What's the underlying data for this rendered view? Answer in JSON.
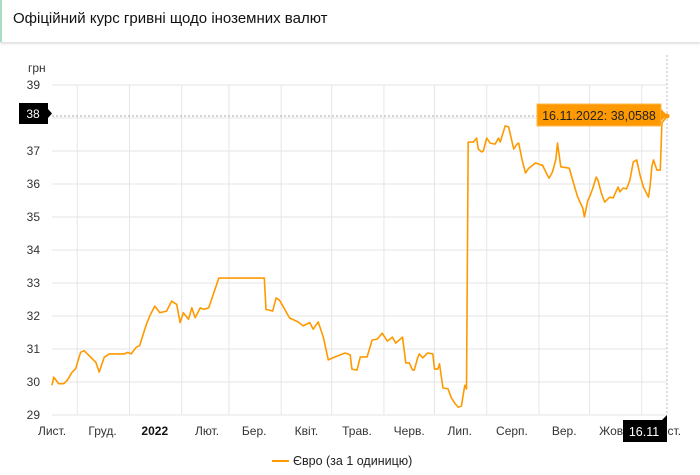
{
  "header": {
    "title": "Офіційний курс гривні щодо іноземних валют"
  },
  "chart_data": {
    "type": "line",
    "ylabel": "грн",
    "ylim": [
      29,
      39
    ],
    "yticks": [
      29,
      30,
      31,
      32,
      33,
      34,
      35,
      36,
      37,
      38,
      39
    ],
    "xlim": [
      "2021-11-16",
      "2022-11-16"
    ],
    "xticks": [
      {
        "date": "2021-11-16",
        "label": "Лист.",
        "bold": false
      },
      {
        "date": "2021-12-16",
        "label": "Груд.",
        "bold": false
      },
      {
        "date": "2022-01-16",
        "label": "2022",
        "bold": true
      },
      {
        "date": "2022-02-16",
        "label": "Лют.",
        "bold": false
      },
      {
        "date": "2022-03-16",
        "label": "Бер.",
        "bold": false
      },
      {
        "date": "2022-04-16",
        "label": "Квіт.",
        "bold": false
      },
      {
        "date": "2022-05-16",
        "label": "Трав.",
        "bold": false
      },
      {
        "date": "2022-06-16",
        "label": "Черв.",
        "bold": false
      },
      {
        "date": "2022-07-16",
        "label": "Лип.",
        "bold": false
      },
      {
        "date": "2022-08-16",
        "label": "Серп.",
        "bold": false
      },
      {
        "date": "2022-09-16",
        "label": "Вер.",
        "bold": false
      },
      {
        "date": "2022-10-16",
        "label": "Жовт.",
        "bold": false
      },
      {
        "date": "2022-11-16",
        "label": "Лист.",
        "bold": false
      }
    ],
    "grid": true,
    "legend_position": "bottom",
    "series": [
      {
        "name": "Євро (за 1 одиницю)",
        "color": "#ff9900",
        "points": [
          [
            "2021-11-16",
            29.9
          ],
          [
            "2021-11-17",
            30.15
          ],
          [
            "2021-11-20",
            29.95
          ],
          [
            "2021-11-23",
            29.95
          ],
          [
            "2021-11-25",
            30.05
          ],
          [
            "2021-11-28",
            30.3
          ],
          [
            "2021-11-30",
            30.4
          ],
          [
            "2021-12-03",
            30.9
          ],
          [
            "2021-12-05",
            30.95
          ],
          [
            "2021-12-07",
            30.85
          ],
          [
            "2021-12-10",
            30.7
          ],
          [
            "2021-12-12",
            30.6
          ],
          [
            "2021-12-14",
            30.3
          ],
          [
            "2021-12-17",
            30.75
          ],
          [
            "2021-12-20",
            30.85
          ],
          [
            "2021-12-24",
            30.85
          ],
          [
            "2021-12-29",
            30.85
          ],
          [
            "2021-12-31",
            30.9
          ],
          [
            "2022-01-02",
            30.85
          ],
          [
            "2022-01-05",
            31.05
          ],
          [
            "2022-01-07",
            31.1
          ],
          [
            "2022-01-11",
            31.75
          ],
          [
            "2022-01-13",
            32.0
          ],
          [
            "2022-01-16",
            32.3
          ],
          [
            "2022-01-19",
            32.1
          ],
          [
            "2022-01-23",
            32.15
          ],
          [
            "2022-01-26",
            32.45
          ],
          [
            "2022-01-29",
            32.35
          ],
          [
            "2022-01-31",
            31.8
          ],
          [
            "2022-02-02",
            32.1
          ],
          [
            "2022-02-05",
            31.9
          ],
          [
            "2022-02-07",
            32.25
          ],
          [
            "2022-02-09",
            31.95
          ],
          [
            "2022-02-12",
            32.25
          ],
          [
            "2022-02-14",
            32.2
          ],
          [
            "2022-02-17",
            32.25
          ],
          [
            "2022-02-19",
            32.55
          ],
          [
            "2022-02-23",
            33.15
          ],
          [
            "2022-03-22",
            33.15
          ],
          [
            "2022-03-23",
            32.2
          ],
          [
            "2022-03-27",
            32.15
          ],
          [
            "2022-03-29",
            32.55
          ],
          [
            "2022-03-31",
            32.48
          ],
          [
            "2022-04-06",
            31.94
          ],
          [
            "2022-04-11",
            31.82
          ],
          [
            "2022-04-14",
            31.7
          ],
          [
            "2022-04-18",
            31.8
          ],
          [
            "2022-04-20",
            31.6
          ],
          [
            "2022-04-23",
            31.82
          ],
          [
            "2022-04-26",
            31.36
          ],
          [
            "2022-04-29",
            30.67
          ],
          [
            "2022-05-03",
            30.76
          ],
          [
            "2022-05-09",
            30.88
          ],
          [
            "2022-05-12",
            30.82
          ],
          [
            "2022-05-13",
            30.39
          ],
          [
            "2022-05-16",
            30.36
          ],
          [
            "2022-05-18",
            30.76
          ],
          [
            "2022-05-22",
            30.76
          ],
          [
            "2022-05-25",
            31.27
          ],
          [
            "2022-05-28",
            31.3
          ],
          [
            "2022-05-31",
            31.48
          ],
          [
            "2022-06-03",
            31.24
          ],
          [
            "2022-06-06",
            31.36
          ],
          [
            "2022-06-08",
            31.18
          ],
          [
            "2022-06-12",
            31.36
          ],
          [
            "2022-06-14",
            30.58
          ],
          [
            "2022-06-16",
            30.58
          ],
          [
            "2022-06-18",
            30.36
          ],
          [
            "2022-06-19",
            30.36
          ],
          [
            "2022-06-21",
            30.73
          ],
          [
            "2022-06-22",
            30.85
          ],
          [
            "2022-06-24",
            30.73
          ],
          [
            "2022-06-27",
            30.88
          ],
          [
            "2022-06-30",
            30.85
          ],
          [
            "2022-07-01",
            30.39
          ],
          [
            "2022-07-03",
            30.39
          ],
          [
            "2022-07-04",
            30.55
          ],
          [
            "2022-07-06",
            29.82
          ],
          [
            "2022-07-09",
            29.79
          ],
          [
            "2022-07-11",
            29.52
          ],
          [
            "2022-07-13",
            29.36
          ],
          [
            "2022-07-15",
            29.24
          ],
          [
            "2022-07-17",
            29.27
          ],
          [
            "2022-07-19",
            29.9
          ],
          [
            "2022-07-20",
            29.79
          ],
          [
            "2022-07-21",
            37.27
          ],
          [
            "2022-07-24",
            37.27
          ],
          [
            "2022-07-26",
            37.39
          ],
          [
            "2022-07-27",
            37.06
          ],
          [
            "2022-07-29",
            36.97
          ],
          [
            "2022-07-30",
            37.0
          ],
          [
            "2022-08-01",
            37.39
          ],
          [
            "2022-08-03",
            37.24
          ],
          [
            "2022-08-06",
            37.21
          ],
          [
            "2022-08-08",
            37.39
          ],
          [
            "2022-08-09",
            37.27
          ],
          [
            "2022-08-12",
            37.76
          ],
          [
            "2022-08-14",
            37.73
          ],
          [
            "2022-08-17",
            37.06
          ],
          [
            "2022-08-19",
            37.21
          ],
          [
            "2022-08-20",
            37.24
          ],
          [
            "2022-08-22",
            36.73
          ],
          [
            "2022-08-24",
            36.33
          ],
          [
            "2022-08-26",
            36.48
          ],
          [
            "2022-08-30",
            36.64
          ],
          [
            "2022-09-02",
            36.58
          ],
          [
            "2022-09-03",
            36.58
          ],
          [
            "2022-09-06",
            36.27
          ],
          [
            "2022-09-07",
            36.18
          ],
          [
            "2022-09-09",
            36.36
          ],
          [
            "2022-09-11",
            36.73
          ],
          [
            "2022-09-12",
            37.24
          ],
          [
            "2022-09-14",
            36.52
          ],
          [
            "2022-09-19",
            36.48
          ],
          [
            "2022-09-21",
            36.12
          ],
          [
            "2022-09-24",
            35.6
          ],
          [
            "2022-09-27",
            35.27
          ],
          [
            "2022-09-28",
            35.0
          ],
          [
            "2022-09-30",
            35.5
          ],
          [
            "2022-10-01",
            35.6
          ],
          [
            "2022-10-03",
            35.88
          ],
          [
            "2022-10-05",
            36.21
          ],
          [
            "2022-10-06",
            36.12
          ],
          [
            "2022-10-08",
            35.73
          ],
          [
            "2022-10-10",
            35.45
          ],
          [
            "2022-10-13",
            35.6
          ],
          [
            "2022-10-15",
            35.58
          ],
          [
            "2022-10-18",
            35.91
          ],
          [
            "2022-10-19",
            35.76
          ],
          [
            "2022-10-21",
            35.88
          ],
          [
            "2022-10-23",
            35.85
          ],
          [
            "2022-10-25",
            36.12
          ],
          [
            "2022-10-27",
            36.67
          ],
          [
            "2022-10-29",
            36.73
          ],
          [
            "2022-10-31",
            36.27
          ],
          [
            "2022-11-02",
            35.91
          ],
          [
            "2022-11-05",
            35.6
          ],
          [
            "2022-11-06",
            35.97
          ],
          [
            "2022-11-07",
            36.52
          ],
          [
            "2022-11-08",
            36.73
          ],
          [
            "2022-11-10",
            36.42
          ],
          [
            "2022-11-12",
            36.42
          ],
          [
            "2022-11-13",
            37.85
          ],
          [
            "2022-11-16",
            38.0588
          ]
        ]
      }
    ],
    "tooltip": {
      "text": "16.11.2022: 38,0588",
      "date": "2022-11-16",
      "value": 38.0588
    },
    "crosshair": {
      "y_label": "38",
      "x_label": "16.11"
    }
  }
}
